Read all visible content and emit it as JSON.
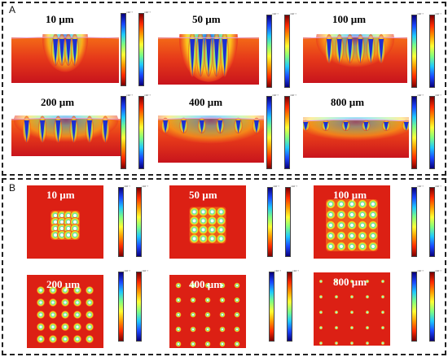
{
  "panels": {
    "a": {
      "letter": "A",
      "plot_type": "cross-section",
      "labels": [
        "10 µm",
        "50 µm",
        "100 µm",
        "200 µm",
        "400 µm",
        "800 µm"
      ]
    },
    "b": {
      "letter": "B",
      "plot_type": "top-view",
      "labels": [
        "10 µm",
        "50 µm",
        "100 µm",
        "200 µm",
        "400 µm",
        "800 µm"
      ]
    }
  },
  "colorbar": {
    "exponent": "×10⁻³"
  },
  "colors": {
    "hot": "#e8321c",
    "mid": "#ffd21a",
    "cool": "#27c3e8",
    "cold": "#1d2fd1"
  }
}
